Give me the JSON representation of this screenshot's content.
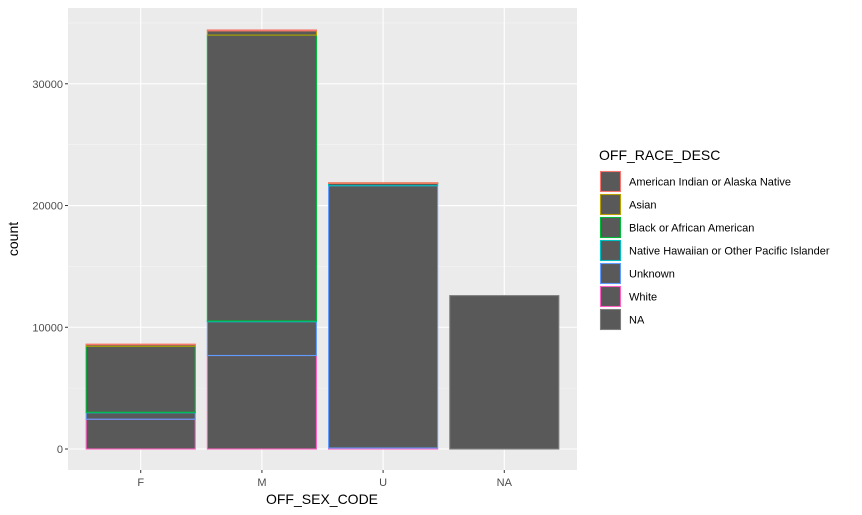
{
  "chart_data": {
    "type": "bar",
    "stacked": true,
    "categories": [
      "F",
      "M",
      "U",
      "NA"
    ],
    "xlabel": "OFF_SEX_CODE",
    "ylabel": "count",
    "ylim": [
      0,
      34500
    ],
    "yticks": [
      0,
      10000,
      20000,
      30000
    ],
    "ytick_labels": [
      "0",
      "10000",
      "20000",
      "30000"
    ],
    "grid": true,
    "bar_fill": "#595959",
    "panel_background": "#ebebeb",
    "legend": {
      "title": "OFF_RACE_DESC",
      "position": "right"
    },
    "series": [
      {
        "name": "White",
        "color": "#ff61c3",
        "values": [
          2450,
          7680,
          80,
          0
        ]
      },
      {
        "name": "Unknown",
        "color": "#619cff",
        "values": [
          540,
          2780,
          21550,
          0
        ]
      },
      {
        "name": "Native Hawaiian or Other Pacific Islander",
        "color": "#00bfc4",
        "values": [
          30,
          60,
          180,
          0
        ]
      },
      {
        "name": "Black or African American",
        "color": "#00ba38",
        "values": [
          5420,
          23480,
          40,
          0
        ]
      },
      {
        "name": "Asian",
        "color": "#b79f00",
        "values": [
          150,
          350,
          10,
          0
        ]
      },
      {
        "name": "American Indian or Alaska Native",
        "color": "#f8766d",
        "values": [
          20,
          70,
          5,
          0
        ]
      },
      {
        "name": "NA",
        "color": "#7f7f7f",
        "values": [
          0,
          0,
          0,
          12600
        ]
      }
    ],
    "legend_order": [
      "American Indian or Alaska Native",
      "Asian",
      "Black or African American",
      "Native Hawaiian or Other Pacific Islander",
      "Unknown",
      "White",
      "NA"
    ]
  }
}
